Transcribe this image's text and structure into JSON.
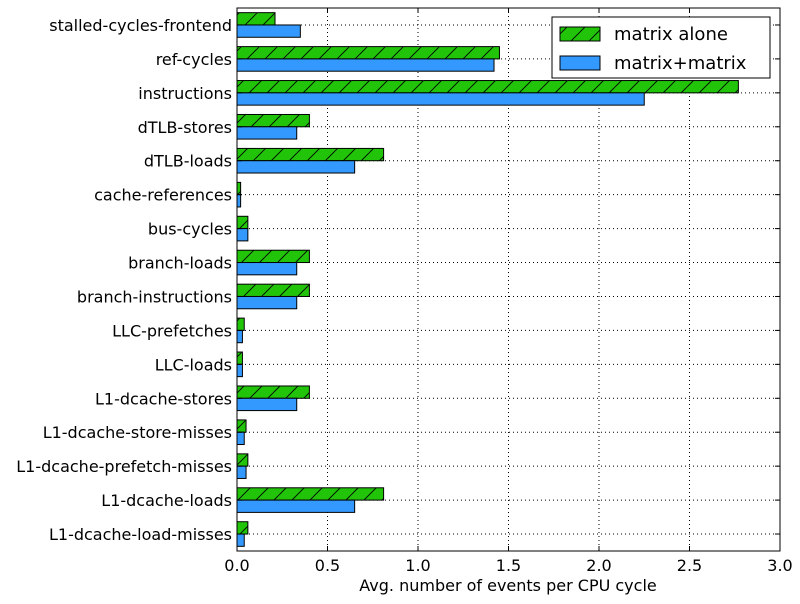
{
  "chart_data": {
    "type": "bar",
    "orientation": "horizontal",
    "categories": [
      "stalled-cycles-frontend",
      "ref-cycles",
      "instructions",
      "dTLB-stores",
      "dTLB-loads",
      "cache-references",
      "bus-cycles",
      "branch-loads",
      "branch-instructions",
      "LLC-prefetches",
      "LLC-loads",
      "L1-dcache-stores",
      "L1-dcache-store-misses",
      "L1-dcache-prefetch-misses",
      "L1-dcache-loads",
      "L1-dcache-load-misses"
    ],
    "series": [
      {
        "name": "matrix alone",
        "color": "#22c40a",
        "hatch": "diagonal",
        "values": [
          0.21,
          1.45,
          2.77,
          0.4,
          0.81,
          0.02,
          0.06,
          0.4,
          0.4,
          0.04,
          0.03,
          0.4,
          0.05,
          0.06,
          0.81,
          0.06
        ]
      },
      {
        "name": "matrix+matrix",
        "color": "#3399ff",
        "hatch": "none",
        "values": [
          0.35,
          1.42,
          2.25,
          0.33,
          0.65,
          0.02,
          0.06,
          0.33,
          0.33,
          0.03,
          0.03,
          0.33,
          0.04,
          0.05,
          0.65,
          0.04
        ]
      }
    ],
    "xlabel": "Avg. number of events per CPU cycle",
    "ylabel": "",
    "xlim": [
      0.0,
      3.0
    ],
    "xticks": [
      "0.0",
      "0.5",
      "1.0",
      "1.5",
      "2.0",
      "2.5",
      "3.0"
    ],
    "grid": true,
    "grid_style": "dotted",
    "legend_position": "top-right"
  }
}
